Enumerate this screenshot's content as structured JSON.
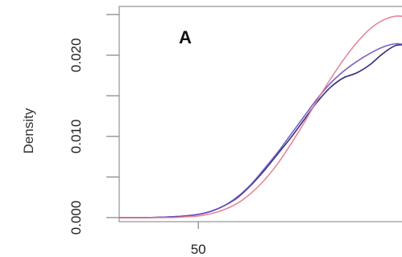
{
  "chart_data": {
    "type": "line",
    "panel_label": "A",
    "ylabel": "Density",
    "xlabel": "",
    "x_ticks": [
      {
        "value": 50,
        "label": "50"
      }
    ],
    "y_ticks": [
      {
        "value": 0.0,
        "label": "0.000"
      },
      {
        "value": 0.01,
        "label": "0.010"
      },
      {
        "value": 0.02,
        "label": "0.020"
      }
    ],
    "xlim": [
      20,
      130
    ],
    "ylim": [
      -0.0005,
      0.026
    ],
    "grid": false,
    "legend": "none",
    "series": [
      {
        "color": "#1a1a6e",
        "x": [
          20,
          30,
          40,
          45,
          50,
          55,
          60,
          65,
          70,
          75,
          80,
          85,
          90,
          95,
          100,
          105,
          110,
          115,
          120,
          125,
          130
        ],
        "y": [
          0.0,
          0.0,
          0.0001,
          0.0002,
          0.0004,
          0.0008,
          0.0015,
          0.0025,
          0.004,
          0.0058,
          0.0078,
          0.0098,
          0.012,
          0.0142,
          0.016,
          0.0172,
          0.0178,
          0.0188,
          0.0202,
          0.0212,
          0.0212
        ]
      },
      {
        "color": "#6a4fc2",
        "x": [
          20,
          30,
          40,
          45,
          50,
          55,
          60,
          65,
          70,
          75,
          80,
          85,
          90,
          95,
          100,
          105,
          110,
          115,
          120,
          125,
          130
        ],
        "y": [
          0.0,
          0.0,
          0.0001,
          0.0002,
          0.0004,
          0.0008,
          0.0015,
          0.0026,
          0.0041,
          0.006,
          0.008,
          0.0102,
          0.0124,
          0.0146,
          0.0165,
          0.018,
          0.0192,
          0.0202,
          0.021,
          0.0214,
          0.0212
        ]
      },
      {
        "color": "#e07a8f",
        "x": [
          20,
          30,
          40,
          45,
          50,
          55,
          60,
          65,
          70,
          75,
          80,
          85,
          90,
          95,
          100,
          105,
          110,
          115,
          120,
          125,
          130
        ],
        "y": [
          0.0,
          0.0,
          0.0,
          0.0001,
          0.0002,
          0.0005,
          0.001,
          0.0018,
          0.003,
          0.0046,
          0.0066,
          0.009,
          0.0116,
          0.0144,
          0.017,
          0.0194,
          0.0215,
          0.0232,
          0.0243,
          0.0248,
          0.0247
        ]
      }
    ]
  }
}
